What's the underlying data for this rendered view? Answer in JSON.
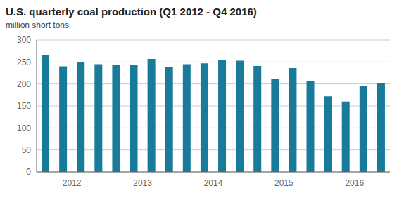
{
  "chart_data": {
    "type": "bar",
    "title": "U.S. quarterly coal production (Q1 2012 - Q4 2016)",
    "ylabel": "million short tons",
    "categories": [
      null,
      "2012",
      null,
      null,
      null,
      "2013",
      null,
      null,
      null,
      "2014",
      null,
      null,
      null,
      "2015",
      null,
      null,
      null,
      "2016",
      null,
      null
    ],
    "values": [
      265,
      240,
      249,
      245,
      244,
      243,
      257,
      238,
      245,
      247,
      255,
      253,
      241,
      211,
      236,
      207,
      172,
      160,
      196,
      201
    ],
    "color": "#1a7a9a",
    "ylim": [
      0,
      300
    ],
    "yticks": [
      0,
      50,
      100,
      150,
      200,
      250,
      300
    ],
    "grid": true
  }
}
